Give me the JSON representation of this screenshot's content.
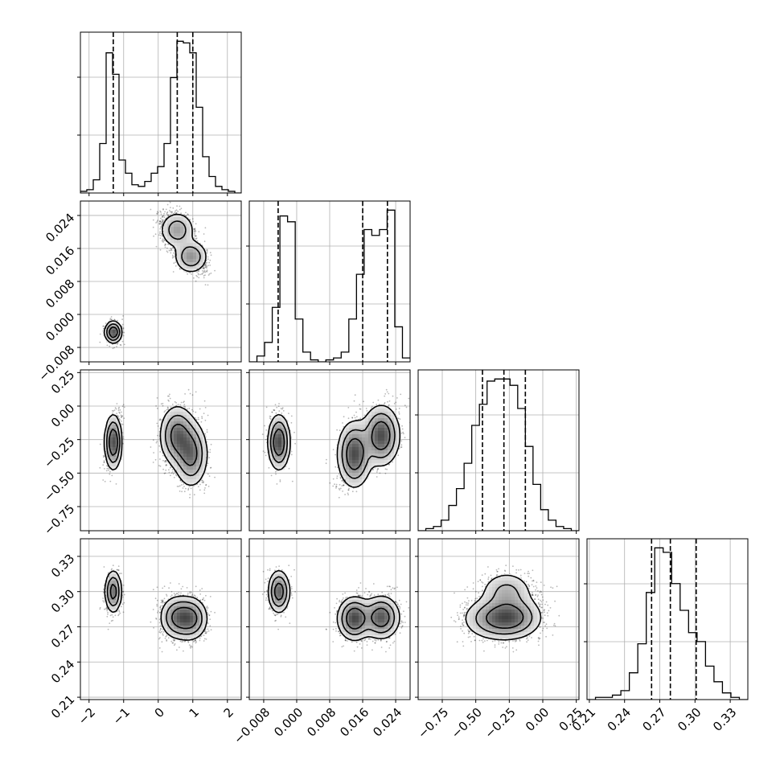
{
  "chart_data": {
    "type": "corner",
    "description_params": 4,
    "grid": true,
    "params": [
      {
        "range": [
          -2.25,
          2.4
        ],
        "ticks": [
          -2,
          -1,
          0,
          1,
          2
        ],
        "tick_labels": [
          "−2",
          "−1",
          "0",
          "1",
          "2"
        ],
        "quantiles": [
          -1.3,
          0.55,
          1.0
        ]
      },
      {
        "range": [
          -0.0115,
          0.0275
        ],
        "ticks": [
          -0.008,
          0.0,
          0.008,
          0.016,
          0.024
        ],
        "tick_labels": [
          "−0.008",
          "0.000",
          "0.008",
          "0.016",
          "0.024"
        ],
        "quantiles": [
          -0.0045,
          0.016,
          0.022
        ]
      },
      {
        "range": [
          -0.93,
          0.27
        ],
        "ticks": [
          -0.75,
          -0.5,
          -0.25,
          0.0,
          0.25
        ],
        "tick_labels": [
          "−0.75",
          "−0.50",
          "−0.25",
          "0.00",
          "0.25"
        ],
        "quantiles": [
          -0.45,
          -0.29,
          -0.13
        ]
      },
      {
        "range": [
          0.208,
          0.345
        ],
        "ticks": [
          0.21,
          0.24,
          0.27,
          0.3,
          0.33
        ],
        "tick_labels": [
          "0.21",
          "0.24",
          "0.27",
          "0.30",
          "0.33"
        ],
        "quantiles": [
          0.263,
          0.279,
          0.301
        ]
      }
    ],
    "histograms": [
      {
        "edges_range": [
          -2.25,
          2.4
        ],
        "counts": [
          1,
          2,
          8,
          30,
          85,
          72,
          20,
          12,
          5,
          4,
          7,
          12,
          16,
          30,
          70,
          92,
          91,
          85,
          52,
          22,
          10,
          4,
          2,
          1,
          0
        ]
      },
      {
        "edges_range": [
          -0.0115,
          0.0275
        ],
        "counts": [
          0,
          3,
          10,
          28,
          75,
          72,
          22,
          5,
          1,
          0,
          1,
          2,
          5,
          22,
          45,
          68,
          65,
          68,
          78,
          18,
          2
        ]
      },
      {
        "edges_range": [
          -0.93,
          0.27
        ],
        "counts": [
          0,
          1,
          2,
          5,
          12,
          20,
          32,
          50,
          60,
          71,
          72,
          72,
          69,
          58,
          40,
          22,
          10,
          5,
          2,
          1,
          0
        ]
      },
      {
        "edges_range": [
          0.208,
          0.345
        ],
        "counts": [
          0,
          1,
          1,
          2,
          4,
          12,
          25,
          48,
          68,
          66,
          52,
          40,
          30,
          26,
          15,
          8,
          3,
          1,
          0
        ]
      }
    ]
  }
}
